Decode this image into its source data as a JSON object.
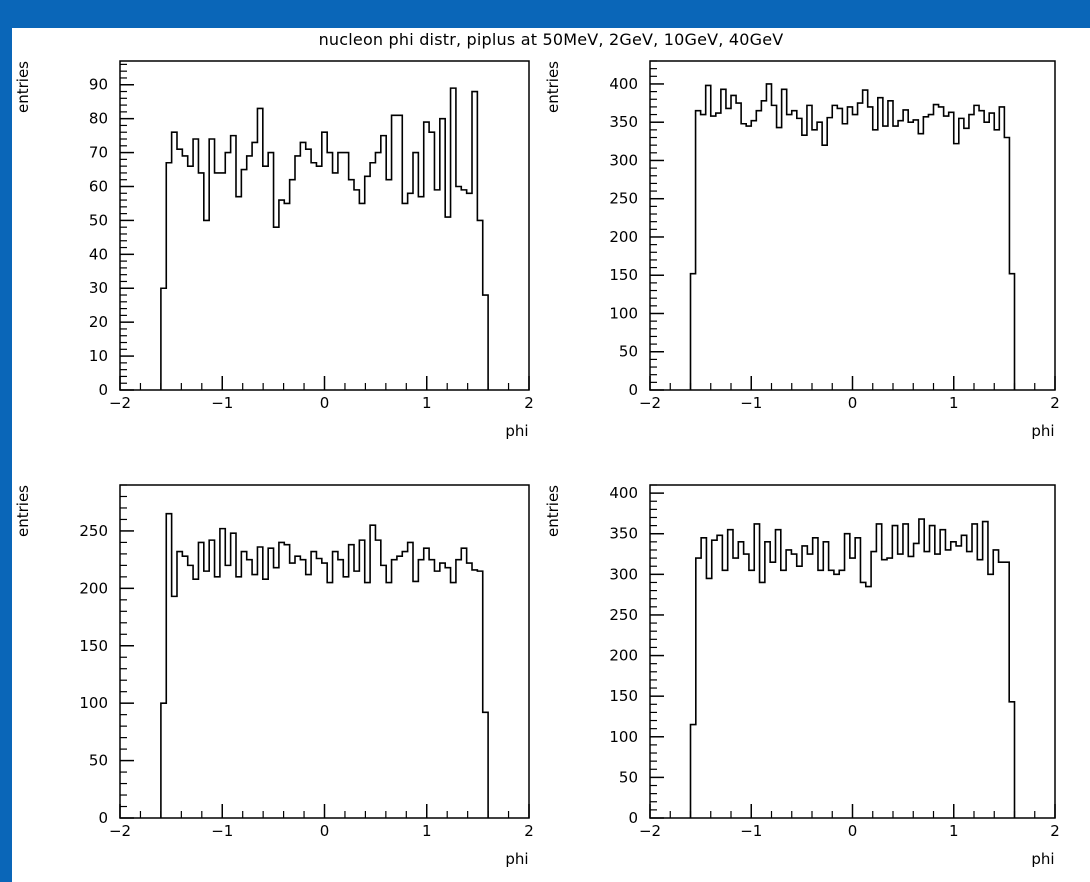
{
  "page": {
    "title": "nucleon phi distr, piplus at 50MeV, 2GeV, 10GeV, 40GeV"
  },
  "colors": {
    "frame": "#0a66b8",
    "background": "#ffffff",
    "line": "#000000"
  },
  "chart_data": [
    {
      "type": "bar",
      "panel": "top-left",
      "xlabel": "phi",
      "ylabel": "entries",
      "xlim": [
        -2,
        2
      ],
      "ylim": [
        0,
        97
      ],
      "xticks": [
        "-2",
        "-1",
        "0",
        "1",
        "2"
      ],
      "yticks": [
        "0",
        "10",
        "20",
        "30",
        "40",
        "50",
        "60",
        "70",
        "80",
        "90"
      ],
      "bin_edges_range": [
        -1.6,
        1.6
      ],
      "values": [
        30,
        67,
        76,
        71,
        69,
        66,
        74,
        64,
        50,
        74,
        64,
        64,
        70,
        75,
        57,
        65,
        69,
        73,
        83,
        66,
        70,
        48,
        56,
        55,
        62,
        69,
        73,
        71,
        67,
        66,
        76,
        70,
        64,
        70,
        70,
        62,
        59,
        55,
        63,
        67,
        70,
        75,
        62,
        81,
        81,
        55,
        58,
        70,
        57,
        79,
        76,
        59,
        80,
        51,
        89,
        60,
        59,
        58,
        88,
        50,
        28
      ],
      "grid": false
    },
    {
      "type": "bar",
      "panel": "top-right",
      "xlabel": "phi",
      "ylabel": "entries",
      "xlim": [
        -2,
        2
      ],
      "ylim": [
        0,
        430
      ],
      "xticks": [
        "-2",
        "-1",
        "0",
        "1",
        "2"
      ],
      "yticks": [
        "0",
        "50",
        "100",
        "150",
        "200",
        "250",
        "300",
        "350",
        "400"
      ],
      "bin_edges_range": [
        -1.6,
        1.6
      ],
      "values": [
        152,
        365,
        360,
        398,
        358,
        362,
        393,
        368,
        385,
        375,
        348,
        345,
        352,
        365,
        378,
        400,
        372,
        343,
        393,
        360,
        365,
        355,
        333,
        372,
        340,
        350,
        320,
        356,
        372,
        368,
        348,
        370,
        360,
        375,
        392,
        370,
        340,
        382,
        345,
        378,
        345,
        352,
        366,
        350,
        353,
        335,
        357,
        360,
        373,
        370,
        358,
        363,
        322,
        355,
        342,
        360,
        372,
        365,
        350,
        362,
        340,
        370,
        330,
        152
      ],
      "grid": false
    },
    {
      "type": "bar",
      "panel": "bottom-left",
      "xlabel": "phi",
      "ylabel": "entries",
      "xlim": [
        -2,
        2
      ],
      "ylim": [
        0,
        290
      ],
      "xticks": [
        "-2",
        "-1",
        "0",
        "1",
        "2"
      ],
      "yticks": [
        "0",
        "50",
        "100",
        "150",
        "200",
        "250"
      ],
      "bin_edges_range": [
        -1.6,
        1.6
      ],
      "values": [
        100,
        265,
        193,
        232,
        228,
        220,
        208,
        240,
        215,
        242,
        210,
        252,
        220,
        248,
        210,
        232,
        225,
        212,
        236,
        208,
        235,
        218,
        240,
        238,
        222,
        228,
        225,
        212,
        232,
        226,
        222,
        205,
        232,
        225,
        210,
        238,
        215,
        242,
        205,
        255,
        242,
        220,
        205,
        225,
        228,
        232,
        240,
        206,
        225,
        235,
        225,
        215,
        222,
        218,
        205,
        225,
        235,
        222,
        216,
        215,
        92
      ],
      "grid": false
    },
    {
      "type": "bar",
      "panel": "bottom-right",
      "xlabel": "phi",
      "ylabel": "entries",
      "xlim": [
        -2,
        2
      ],
      "ylim": [
        0,
        410
      ],
      "xticks": [
        "-2",
        "-1",
        "0",
        "1",
        "2"
      ],
      "yticks": [
        "0",
        "50",
        "100",
        "150",
        "200",
        "250",
        "300",
        "350",
        "400"
      ],
      "bin_edges_range": [
        -1.6,
        1.6
      ],
      "values": [
        115,
        320,
        345,
        295,
        342,
        348,
        305,
        355,
        320,
        340,
        325,
        305,
        362,
        290,
        340,
        315,
        355,
        305,
        330,
        325,
        310,
        335,
        325,
        345,
        305,
        340,
        305,
        300,
        305,
        350,
        320,
        345,
        290,
        285,
        328,
        362,
        318,
        320,
        360,
        325,
        362,
        322,
        338,
        368,
        328,
        360,
        325,
        355,
        330,
        340,
        335,
        348,
        328,
        362,
        318,
        365,
        300,
        330,
        315,
        315,
        143
      ],
      "grid": false
    }
  ]
}
